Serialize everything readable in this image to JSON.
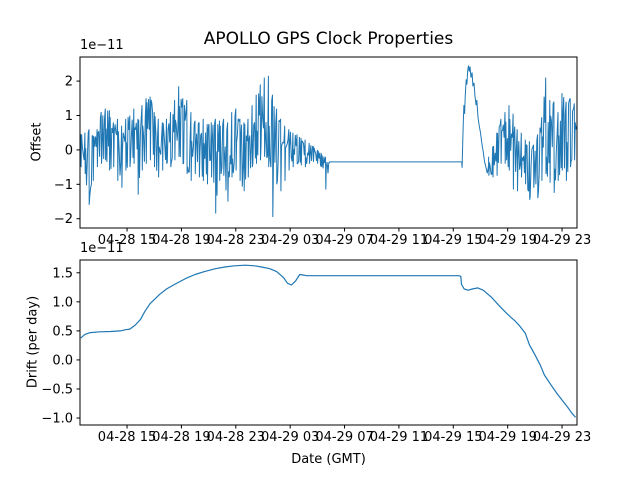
{
  "figure_title": "APOLLO GPS Clock Properties",
  "chart_data": [
    {
      "type": "line",
      "title": "APOLLO GPS Clock Properties",
      "ylabel": "Offset",
      "offset_text": "1e−11",
      "line_color": "#1f77b4",
      "grid": false,
      "x_unit": "hours from 04-28 12:00 (GMT)",
      "xlim": [
        -0.46,
        36.1
      ],
      "ylim": [
        -2.27,
        2.7
      ],
      "xtick_values": [
        3,
        7,
        11,
        15,
        19,
        23,
        27,
        31,
        35
      ],
      "xtick_labels": [
        "04-28 15",
        "04-28 19",
        "04-28 23",
        "04-29 03",
        "04-29 07",
        "04-29 11",
        "04-29 15",
        "04-29 19",
        "04-29 23"
      ],
      "ytick_values": [
        2,
        1,
        0,
        -1,
        -2
      ],
      "ytick_labels": [
        "2",
        "1",
        "0",
        "−1",
        "−2"
      ],
      "segments": [
        {
          "kind": "noise",
          "envelope": [
            [
              -0.4,
              -0.5,
              0.45
            ],
            [
              -0.1,
              -0.7,
              0.5
            ],
            [
              0.2,
              -1.6,
              0.6
            ],
            [
              0.5,
              -0.9,
              0.4
            ],
            [
              0.8,
              -0.5,
              0.6
            ],
            [
              1.1,
              -0.4,
              1.1
            ],
            [
              1.4,
              -0.3,
              1.2
            ],
            [
              1.7,
              -0.6,
              1.15
            ],
            [
              2.0,
              -0.5,
              0.8
            ],
            [
              2.3,
              -0.9,
              0.9
            ],
            [
              2.6,
              -1.1,
              0.7
            ],
            [
              2.9,
              -0.6,
              0.9
            ],
            [
              3.2,
              -0.5,
              1.0
            ],
            [
              3.5,
              -0.4,
              1.2
            ],
            [
              3.8,
              -1.3,
              0.9
            ],
            [
              4.1,
              -0.6,
              1.3
            ],
            [
              4.4,
              -0.4,
              1.5
            ],
            [
              4.7,
              -0.3,
              1.55
            ],
            [
              5.0,
              -0.5,
              1.1
            ],
            [
              5.3,
              -0.8,
              0.9
            ],
            [
              5.6,
              -0.6,
              0.8
            ],
            [
              5.9,
              -0.4,
              0.9
            ],
            [
              6.2,
              -0.5,
              1.1
            ],
            [
              6.5,
              -0.3,
              1.45
            ],
            [
              6.8,
              -0.2,
              1.85
            ],
            [
              7.1,
              -0.4,
              1.5
            ],
            [
              7.4,
              -0.7,
              1.45
            ],
            [
              7.7,
              -0.9,
              1.1
            ],
            [
              8.0,
              -0.7,
              0.85
            ],
            [
              8.3,
              -0.8,
              0.8
            ],
            [
              8.6,
              -0.9,
              0.9
            ],
            [
              8.9,
              -1.0,
              0.75
            ],
            [
              9.2,
              -0.8,
              0.8
            ],
            [
              9.5,
              -1.85,
              0.9
            ],
            [
              9.8,
              -0.9,
              0.85
            ],
            [
              10.1,
              -0.75,
              0.9
            ],
            [
              10.4,
              -1.5,
              0.8
            ],
            [
              10.7,
              -0.8,
              1.1
            ],
            [
              11.0,
              -0.6,
              1.2
            ],
            [
              11.3,
              -0.9,
              0.9
            ],
            [
              11.6,
              -1.2,
              0.8
            ],
            [
              11.9,
              -0.8,
              0.9
            ],
            [
              12.2,
              -0.5,
              1.3
            ],
            [
              12.5,
              -0.4,
              1.6
            ],
            [
              12.8,
              -0.3,
              1.9
            ],
            [
              13.1,
              -0.2,
              2.1
            ],
            [
              13.4,
              -0.5,
              2.15
            ],
            [
              13.7,
              -1.95,
              1.6
            ],
            [
              14.0,
              -1.0,
              1.2
            ],
            [
              14.3,
              -1.2,
              0.9
            ],
            [
              14.6,
              -0.9,
              0.7
            ],
            [
              14.9,
              -0.6,
              0.6
            ],
            [
              15.2,
              -0.5,
              0.5
            ],
            [
              15.5,
              -0.4,
              0.45
            ],
            [
              15.8,
              -0.45,
              0.35
            ],
            [
              16.1,
              -0.5,
              0.3
            ],
            [
              16.4,
              -0.4,
              0.2
            ],
            [
              16.7,
              -0.35,
              0.1
            ],
            [
              17.0,
              -0.4,
              0.0
            ],
            [
              17.3,
              -0.5,
              -0.1
            ],
            [
              17.6,
              -1.15,
              -0.2
            ],
            [
              17.9,
              -0.45,
              -0.3
            ]
          ]
        },
        {
          "kind": "line",
          "points": [
            [
              17.9,
              -0.35
            ],
            [
              27.62,
              -0.35
            ],
            [
              27.65,
              -0.52
            ]
          ]
        },
        {
          "kind": "line",
          "points": [
            [
              27.7,
              0.3
            ],
            [
              27.74,
              0.9
            ],
            [
              27.78,
              1.3
            ],
            [
              27.83,
              1.05
            ],
            [
              27.88,
              1.6
            ],
            [
              27.95,
              2.05
            ],
            [
              28.0,
              1.9
            ],
            [
              28.06,
              2.3
            ],
            [
              28.12,
              2.45
            ],
            [
              28.18,
              2.28
            ],
            [
              28.23,
              2.42
            ],
            [
              28.3,
              2.1
            ],
            [
              28.38,
              2.25
            ],
            [
              28.44,
              1.85
            ],
            [
              28.52,
              1.95
            ],
            [
              28.6,
              1.55
            ],
            [
              28.68,
              1.3
            ],
            [
              28.73,
              1.45
            ],
            [
              28.82,
              0.95
            ],
            [
              28.9,
              0.72
            ],
            [
              29.0,
              0.5
            ],
            [
              29.1,
              0.2
            ],
            [
              29.2,
              -0.05
            ],
            [
              29.3,
              -0.35
            ],
            [
              29.4,
              -0.5
            ],
            [
              29.5,
              -0.68
            ],
            [
              29.6,
              -0.45
            ]
          ]
        },
        {
          "kind": "noise",
          "envelope": [
            [
              29.6,
              -0.75,
              -0.2
            ],
            [
              29.9,
              -0.8,
              0.1
            ],
            [
              30.2,
              -0.75,
              0.5
            ],
            [
              30.5,
              -0.4,
              0.9
            ],
            [
              30.8,
              -0.4,
              1.1
            ],
            [
              31.1,
              -0.6,
              1.3
            ],
            [
              31.4,
              -1.15,
              1.05
            ],
            [
              31.7,
              -1.2,
              0.6
            ],
            [
              32.0,
              -0.8,
              0.5
            ],
            [
              32.3,
              -1.0,
              0.3
            ],
            [
              32.6,
              -1.45,
              0.25
            ],
            [
              32.9,
              -1.1,
              0.15
            ],
            [
              33.2,
              -1.4,
              0.45
            ],
            [
              33.5,
              -0.9,
              0.95
            ],
            [
              33.8,
              -0.7,
              2.1
            ],
            [
              34.1,
              -0.95,
              1.45
            ],
            [
              34.4,
              -1.25,
              1.4
            ],
            [
              34.7,
              -0.9,
              1.1
            ],
            [
              35.0,
              -0.6,
              1.65
            ],
            [
              35.3,
              -0.9,
              1.4
            ],
            [
              35.6,
              -0.5,
              1.5
            ],
            [
              35.9,
              -0.3,
              1.35
            ],
            [
              36.1,
              0.1,
              1.3
            ]
          ]
        }
      ]
    },
    {
      "type": "line",
      "ylabel": "Drift (per day)",
      "xlabel": "Date (GMT)",
      "offset_text": "1e−11",
      "line_color": "#1f77b4",
      "grid": false,
      "x_unit": "hours from 04-28 12:00 (GMT)",
      "xlim": [
        -0.46,
        36.1
      ],
      "ylim": [
        -1.12,
        1.72
      ],
      "xtick_values": [
        3,
        7,
        11,
        15,
        19,
        23,
        27,
        31,
        35
      ],
      "xtick_labels": [
        "04-28 15",
        "04-28 19",
        "04-28 23",
        "04-29 03",
        "04-29 07",
        "04-29 11",
        "04-29 15",
        "04-29 19",
        "04-29 23"
      ],
      "ytick_values": [
        1.5,
        1.0,
        0.5,
        0.0,
        -0.5,
        -1.0
      ],
      "ytick_labels": [
        "1.5",
        "1.0",
        "0.5",
        "0.0",
        "−0.5",
        "−1.0"
      ],
      "points": [
        [
          -0.4,
          0.38
        ],
        [
          -0.1,
          0.44
        ],
        [
          0.3,
          0.47
        ],
        [
          1.0,
          0.485
        ],
        [
          1.8,
          0.49
        ],
        [
          2.5,
          0.5
        ],
        [
          2.9,
          0.52
        ],
        [
          3.2,
          0.53
        ],
        [
          3.6,
          0.6
        ],
        [
          4.0,
          0.7
        ],
        [
          4.3,
          0.83
        ],
        [
          4.7,
          0.97
        ],
        [
          5.1,
          1.06
        ],
        [
          5.4,
          1.13
        ],
        [
          5.9,
          1.22
        ],
        [
          6.5,
          1.3
        ],
        [
          7.3,
          1.4
        ],
        [
          8.0,
          1.47
        ],
        [
          8.7,
          1.52
        ],
        [
          9.5,
          1.57
        ],
        [
          10.2,
          1.6
        ],
        [
          10.9,
          1.62
        ],
        [
          11.7,
          1.63
        ],
        [
          12.4,
          1.62
        ],
        [
          12.9,
          1.6
        ],
        [
          13.5,
          1.57
        ],
        [
          14.0,
          1.52
        ],
        [
          14.5,
          1.42
        ],
        [
          14.8,
          1.32
        ],
        [
          15.1,
          1.29
        ],
        [
          15.4,
          1.36
        ],
        [
          15.7,
          1.47
        ],
        [
          16.0,
          1.46
        ],
        [
          16.2,
          1.45
        ],
        [
          27.4,
          1.45
        ],
        [
          27.55,
          1.44
        ],
        [
          27.6,
          1.3
        ],
        [
          27.8,
          1.22
        ],
        [
          28.1,
          1.2
        ],
        [
          28.4,
          1.22
        ],
        [
          28.8,
          1.24
        ],
        [
          29.2,
          1.2
        ],
        [
          29.5,
          1.14
        ],
        [
          29.8,
          1.08
        ],
        [
          30.0,
          1.03
        ],
        [
          30.3,
          0.95
        ],
        [
          30.6,
          0.88
        ],
        [
          30.9,
          0.81
        ],
        [
          31.2,
          0.74
        ],
        [
          31.5,
          0.68
        ],
        [
          31.9,
          0.58
        ],
        [
          32.3,
          0.46
        ],
        [
          32.6,
          0.26
        ],
        [
          33.0,
          0.09
        ],
        [
          33.4,
          -0.09
        ],
        [
          33.7,
          -0.26
        ],
        [
          34.1,
          -0.4
        ],
        [
          34.6,
          -0.57
        ],
        [
          35.0,
          -0.69
        ],
        [
          35.4,
          -0.81
        ],
        [
          35.7,
          -0.91
        ],
        [
          36.0,
          -0.99
        ]
      ]
    }
  ]
}
